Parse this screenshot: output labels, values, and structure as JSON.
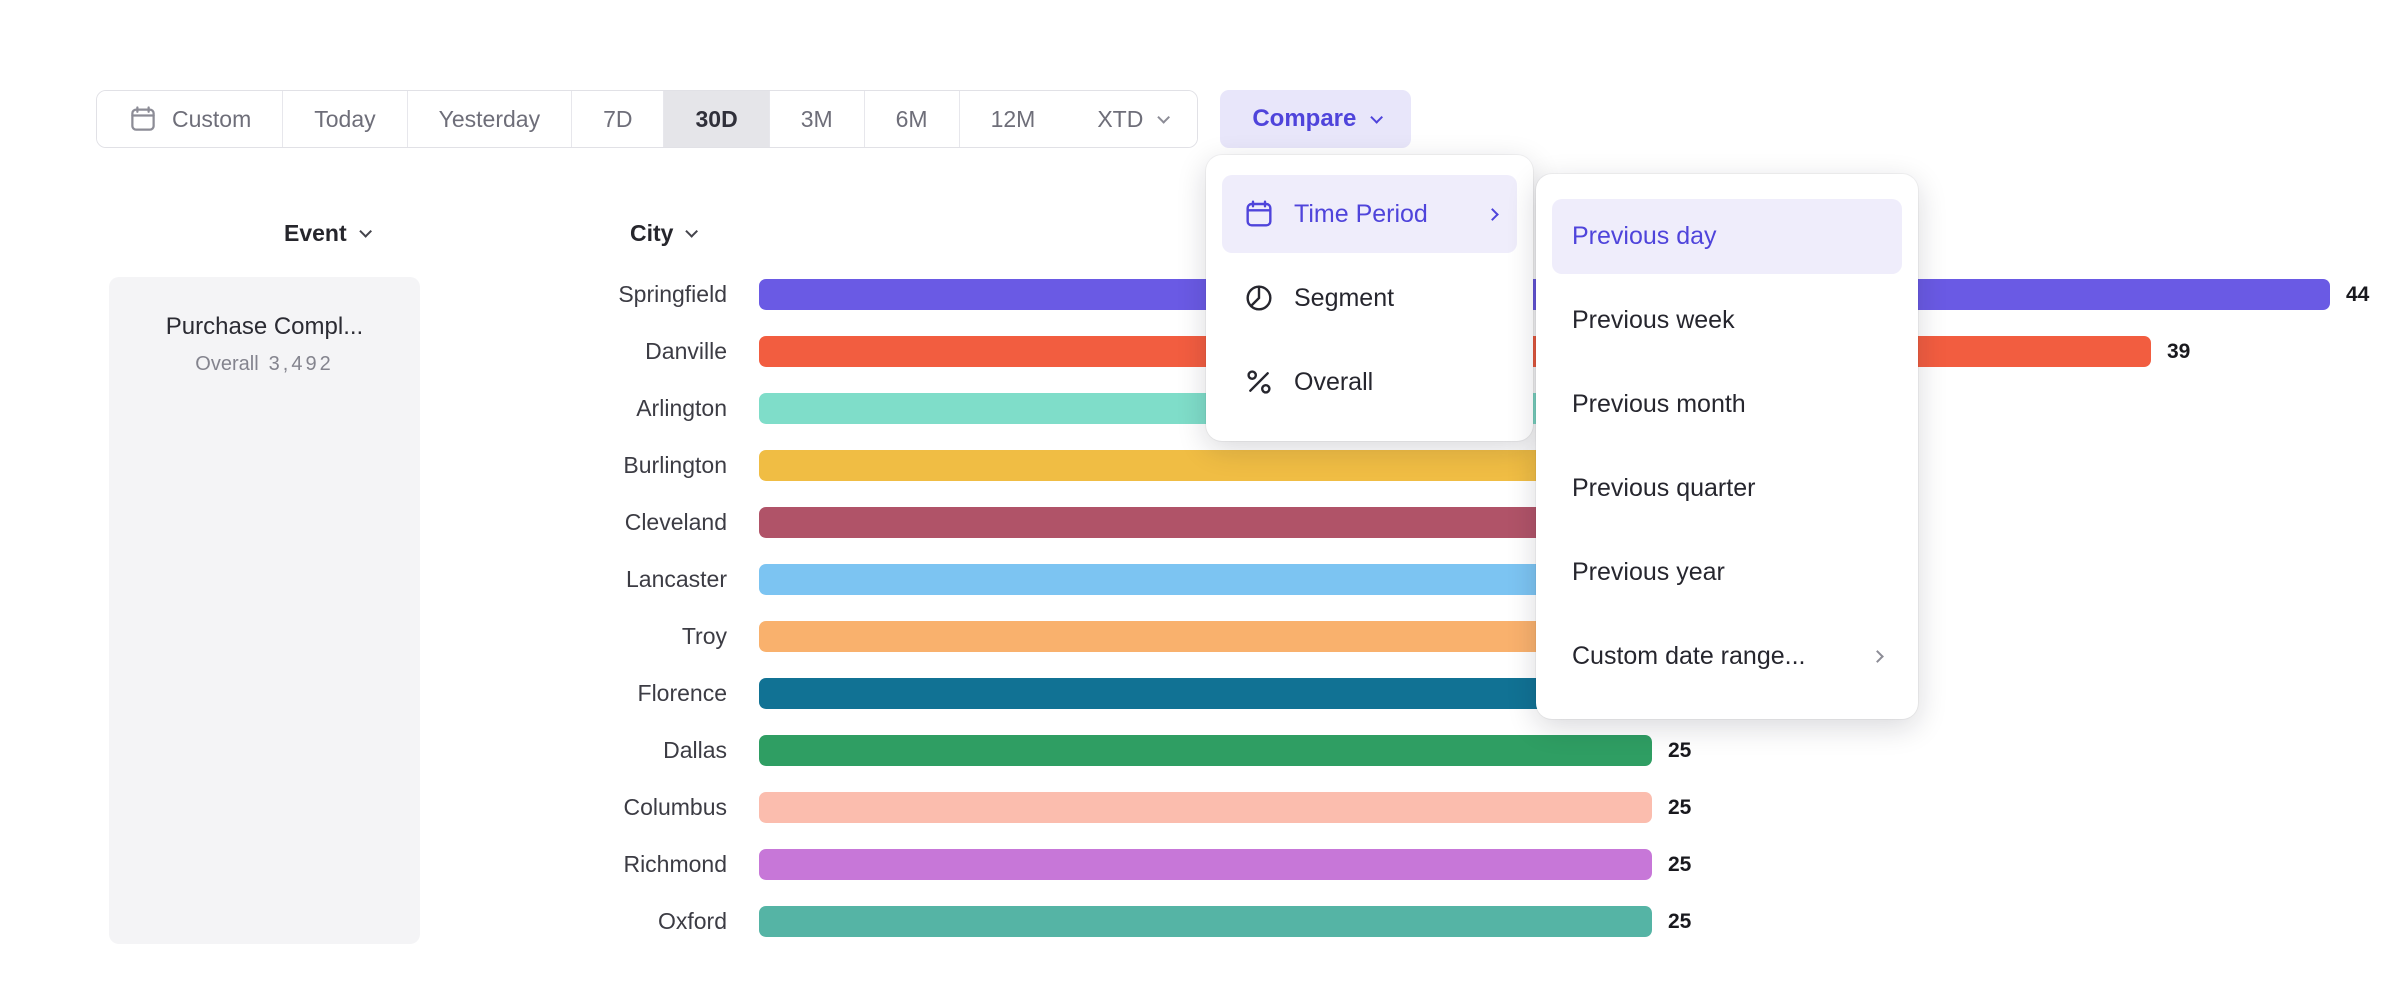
{
  "colors": {
    "accent_purple": "#4f44db",
    "accent_purple_bg": "#efedfb",
    "compare_button_bg": "#e8e6fa",
    "selected_segment_bg": "#e5e5e9",
    "panel_bg": "#f4f4f6"
  },
  "toolbar": {
    "custom_label": "Custom",
    "buttons": [
      "Today",
      "Yesterday",
      "7D",
      "30D",
      "3M",
      "6M",
      "12M"
    ],
    "selected": "30D",
    "xtd_label": "XTD",
    "compare_label": "Compare"
  },
  "columns": {
    "event_header": "Event",
    "city_header": "City"
  },
  "event_panel": {
    "event_name": "Purchase Compl...",
    "overall_label": "Overall",
    "overall_value": "3,492"
  },
  "compare_menu": {
    "items": [
      {
        "label": "Time Period",
        "icon": "calendar-icon",
        "active": true,
        "has_submenu": true
      },
      {
        "label": "Segment",
        "icon": "segment-icon",
        "active": false,
        "has_submenu": false
      },
      {
        "label": "Overall",
        "icon": "percent-icon",
        "active": false,
        "has_submenu": false
      }
    ]
  },
  "time_period_submenu": {
    "items": [
      {
        "label": "Previous day",
        "active": true,
        "has_submenu": false
      },
      {
        "label": "Previous week",
        "active": false,
        "has_submenu": false
      },
      {
        "label": "Previous month",
        "active": false,
        "has_submenu": false
      },
      {
        "label": "Previous quarter",
        "active": false,
        "has_submenu": false
      },
      {
        "label": "Previous year",
        "active": false,
        "has_submenu": false
      },
      {
        "label": "Custom date range...",
        "active": false,
        "has_submenu": true
      }
    ]
  },
  "chart_data": {
    "type": "bar",
    "orientation": "horizontal",
    "title": "",
    "xlabel": "",
    "ylabel": "City",
    "xlim": [
      0,
      47
    ],
    "categories": [
      "Springfield",
      "Danville",
      "Arlington",
      "Burlington",
      "Cleveland",
      "Lancaster",
      "Troy",
      "Florence",
      "Dallas",
      "Columbus",
      "Richmond",
      "Oxford"
    ],
    "values": [
      44,
      39,
      30,
      29,
      28,
      27,
      26,
      26,
      25,
      25,
      25,
      25
    ],
    "visible_value_labels": [
      "44",
      "39",
      null,
      null,
      null,
      null,
      null,
      null,
      "25",
      "25",
      "25",
      "25"
    ],
    "colors": [
      "#6a5ae4",
      "#f25d40",
      "#7fddc9",
      "#f0bd44",
      "#b05368",
      "#7cc4f2",
      "#f9b16d",
      "#117294",
      "#2f9e63",
      "#fbbdae",
      "#c777d8",
      "#55b4a5"
    ]
  }
}
